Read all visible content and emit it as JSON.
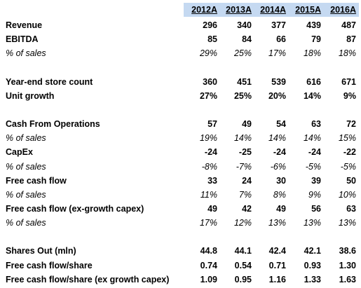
{
  "table": {
    "columns": [
      "2012A",
      "2013A",
      "2014A",
      "2015A",
      "2016A"
    ],
    "sections": [
      [
        {
          "label": "Revenue",
          "style": "bold",
          "values": [
            "296",
            "340",
            "377",
            "439",
            "487"
          ]
        },
        {
          "label": "EBITDA",
          "style": "bold",
          "values": [
            "85",
            "84",
            "66",
            "79",
            "87"
          ]
        },
        {
          "label": "% of sales",
          "style": "italic",
          "values": [
            "29%",
            "25%",
            "17%",
            "18%",
            "18%"
          ]
        }
      ],
      [
        {
          "label": "Year-end store count",
          "style": "bold",
          "values": [
            "360",
            "451",
            "539",
            "616",
            "671"
          ]
        },
        {
          "label": "Unit growth",
          "style": "bold",
          "values": [
            "27%",
            "25%",
            "20%",
            "14%",
            "9%"
          ]
        }
      ],
      [
        {
          "label": "Cash From Operations",
          "style": "bold",
          "values": [
            "57",
            "49",
            "54",
            "63",
            "72"
          ]
        },
        {
          "label": "% of sales",
          "style": "italic",
          "values": [
            "19%",
            "14%",
            "14%",
            "14%",
            "15%"
          ]
        },
        {
          "label": "CapEx",
          "style": "bold",
          "values": [
            "-24",
            "-25",
            "-24",
            "-24",
            "-22"
          ]
        },
        {
          "label": "% of sales",
          "style": "italic",
          "values": [
            "-8%",
            "-7%",
            "-6%",
            "-5%",
            "-5%"
          ]
        },
        {
          "label": "Free cash flow",
          "style": "bold",
          "values": [
            "33",
            "24",
            "30",
            "39",
            "50"
          ]
        },
        {
          "label": "% of sales",
          "style": "italic",
          "values": [
            "11%",
            "7%",
            "8%",
            "9%",
            "10%"
          ]
        },
        {
          "label": "Free cash flow (ex-growth capex)",
          "style": "bold",
          "values": [
            "49",
            "42",
            "49",
            "56",
            "63"
          ]
        },
        {
          "label": "% of sales",
          "style": "italic",
          "values": [
            "17%",
            "12%",
            "13%",
            "13%",
            "13%"
          ]
        }
      ],
      [
        {
          "label": "Shares Out (mln)",
          "style": "bold",
          "values": [
            "44.8",
            "44.1",
            "42.4",
            "42.1",
            "38.6"
          ]
        },
        {
          "label": "Free cash flow/share",
          "style": "bold",
          "values": [
            "0.74",
            "0.54",
            "0.71",
            "0.93",
            "1.30"
          ]
        },
        {
          "label": "Free cash flow/share (ex growth capex)",
          "style": "bold",
          "values": [
            "1.09",
            "0.95",
            "1.16",
            "1.33",
            "1.63"
          ]
        }
      ]
    ]
  }
}
